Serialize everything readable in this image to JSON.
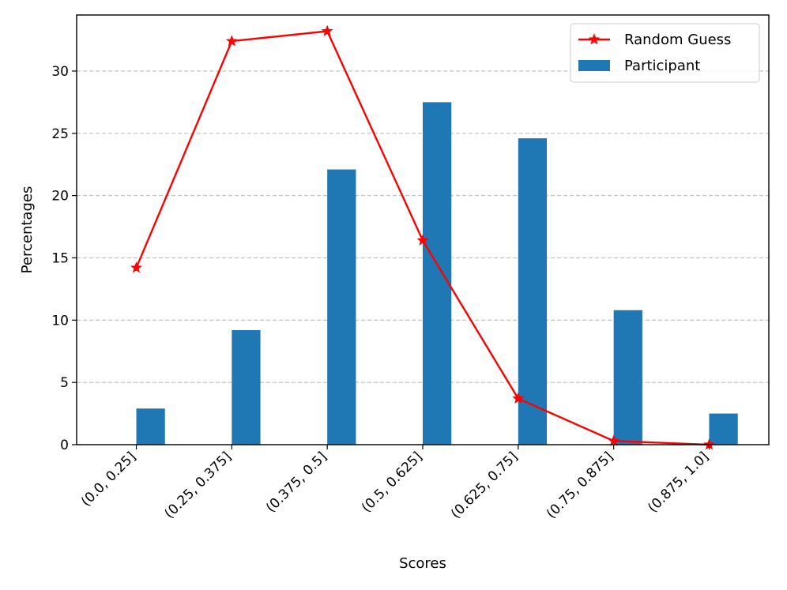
{
  "chart_data": {
    "type": "bar",
    "title": "",
    "xlabel": "Scores",
    "ylabel": "Percentages",
    "categories": [
      "(0.0, 0.25]",
      "(0.25, 0.375]",
      "(0.375, 0.5]",
      "(0.5, 0.625]",
      "(0.625, 0.75]",
      "(0.75, 0.875]",
      "(0.875, 1.0]"
    ],
    "ylim": [
      0,
      34.5
    ],
    "yticks": [
      0,
      5,
      10,
      15,
      20,
      25,
      30
    ],
    "grid": {
      "axis": "y",
      "style": "dashed"
    },
    "legend_position": "top-right",
    "series": [
      {
        "name": "Random Guess",
        "kind": "line",
        "marker": "star",
        "color": "#ff0000",
        "values": [
          14.2,
          32.4,
          33.2,
          16.4,
          3.7,
          0.3,
          0.0
        ]
      },
      {
        "name": "Participant",
        "kind": "bar",
        "color": "#1f77b4",
        "values": [
          2.9,
          9.2,
          22.1,
          27.5,
          24.6,
          10.8,
          2.5
        ]
      }
    ]
  }
}
